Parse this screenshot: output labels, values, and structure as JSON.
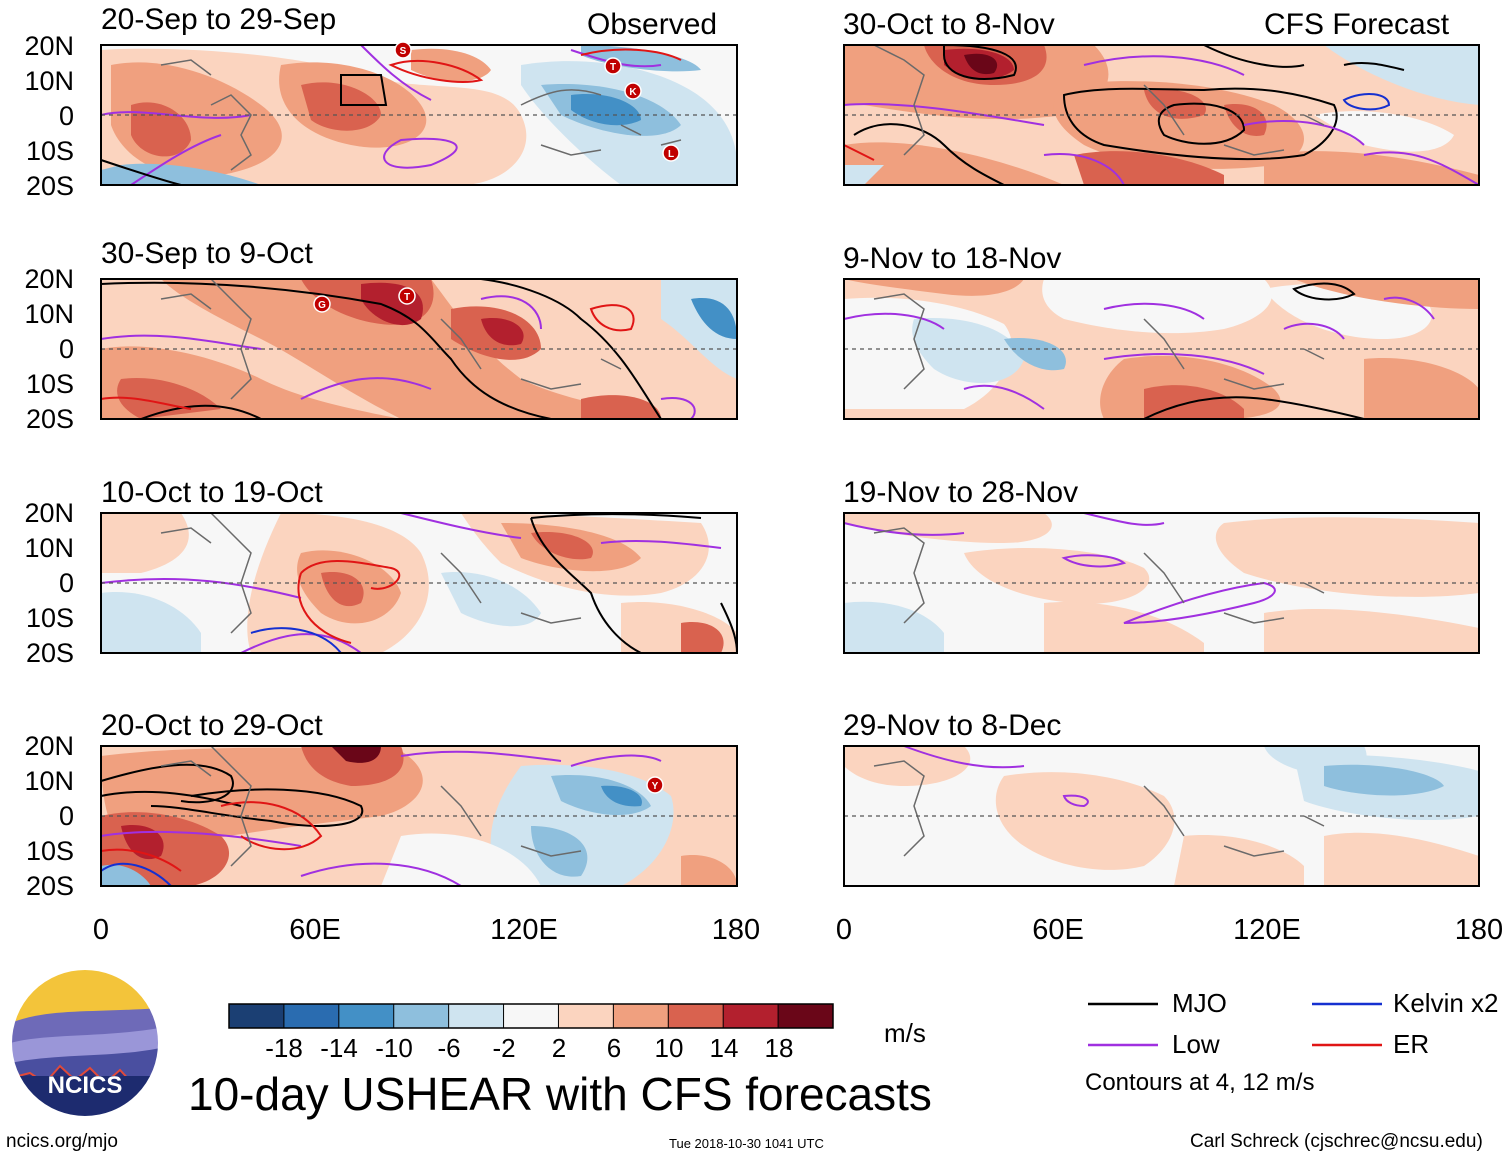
{
  "header": {
    "observed_label": "Observed",
    "forecast_label": "CFS Forecast"
  },
  "panels": [
    {
      "title": "20-Sep to 29-Sep",
      "kind": "observed",
      "storm_labels": [
        "S",
        "T",
        "K",
        "L"
      ]
    },
    {
      "title": "30-Sep to 9-Oct",
      "kind": "observed",
      "storm_labels": [
        "G",
        "T"
      ]
    },
    {
      "title": "10-Oct to 19-Oct",
      "kind": "observed",
      "storm_labels": []
    },
    {
      "title": "20-Oct to 29-Oct",
      "kind": "observed",
      "storm_labels": [
        "Y"
      ]
    },
    {
      "title": "30-Oct to 8-Nov",
      "kind": "forecast",
      "storm_labels": []
    },
    {
      "title": "9-Nov to 18-Nov",
      "kind": "forecast",
      "storm_labels": []
    },
    {
      "title": "19-Nov to 28-Nov",
      "kind": "forecast",
      "storm_labels": []
    },
    {
      "title": "29-Nov to 8-Dec",
      "kind": "forecast",
      "storm_labels": []
    }
  ],
  "axes": {
    "lat_labels": [
      "20N",
      "10N",
      "0",
      "10S",
      "20S"
    ],
    "lon_labels": [
      "0",
      "60E",
      "120E",
      "180"
    ]
  },
  "colorbar": {
    "labels": [
      "-18",
      "-14",
      "-10",
      "-6",
      "-2",
      "2",
      "6",
      "10",
      "14",
      "18"
    ],
    "colors": [
      "#1b3f73",
      "#2a6cb0",
      "#4390c6",
      "#8ebfdd",
      "#cfe4f0",
      "#f7f7f7",
      "#fbd4bf",
      "#f0a07f",
      "#d9624f",
      "#b3202e",
      "#6a0618"
    ],
    "unit": "m/s"
  },
  "legend": {
    "items": [
      {
        "label": "MJO",
        "color": "#000000"
      },
      {
        "label": "Kelvin x2",
        "color": "#1530d0"
      },
      {
        "label": "Low",
        "color": "#a030e0"
      },
      {
        "label": "ER",
        "color": "#e01515"
      }
    ],
    "note": "Contours at 4, 12 m/s"
  },
  "main_title": "10-day USHEAR with CFS forecasts",
  "logo_text": "NCICS",
  "footer": {
    "url": "ncics.org/mjo",
    "timestamp": "Tue 2018-10-30 1041 UTC",
    "credit": "Carl Schreck (cjschrec@ncsu.edu)"
  }
}
